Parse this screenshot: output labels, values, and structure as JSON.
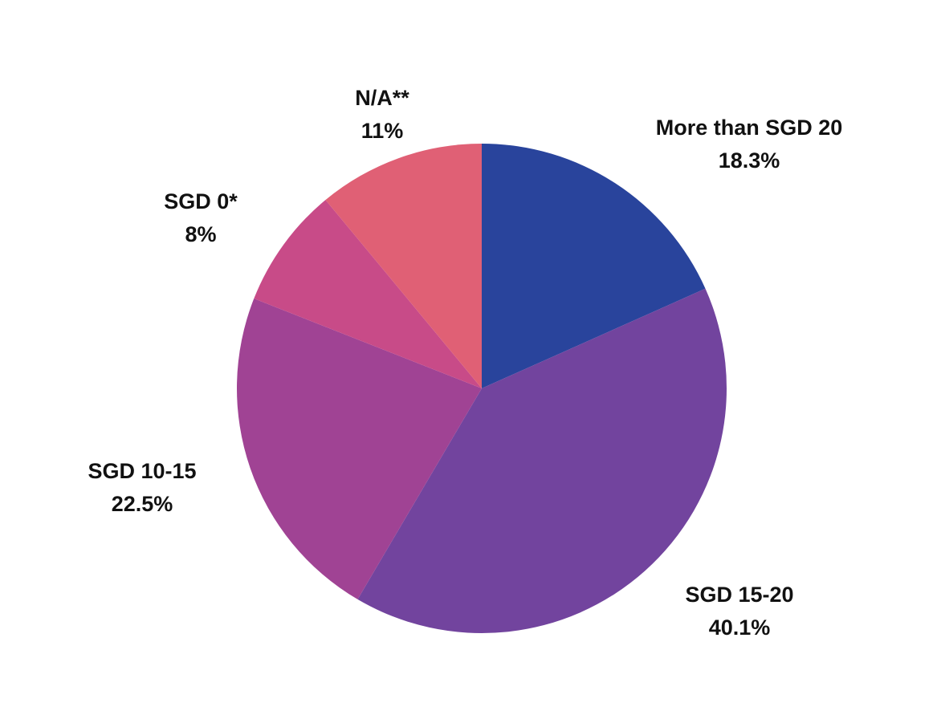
{
  "chart_data": {
    "type": "pie",
    "title": "",
    "start_angle_deg": 0,
    "direction": "clockwise",
    "slices": [
      {
        "name": "More than SGD 20",
        "value": 18.3,
        "value_label": "18.3%",
        "color": "#29449c"
      },
      {
        "name": "SGD 15-20",
        "value": 40.1,
        "value_label": "40.1%",
        "color": "#72449e"
      },
      {
        "name": "SGD 10-15",
        "value": 22.5,
        "value_label": "22.5%",
        "color": "#a04394"
      },
      {
        "name": "SGD 0*",
        "value": 8,
        "value_label": "8%",
        "color": "#c84b88"
      },
      {
        "name": "N/A**",
        "value": 11,
        "value_label": "11%",
        "color": "#e06075"
      }
    ]
  }
}
